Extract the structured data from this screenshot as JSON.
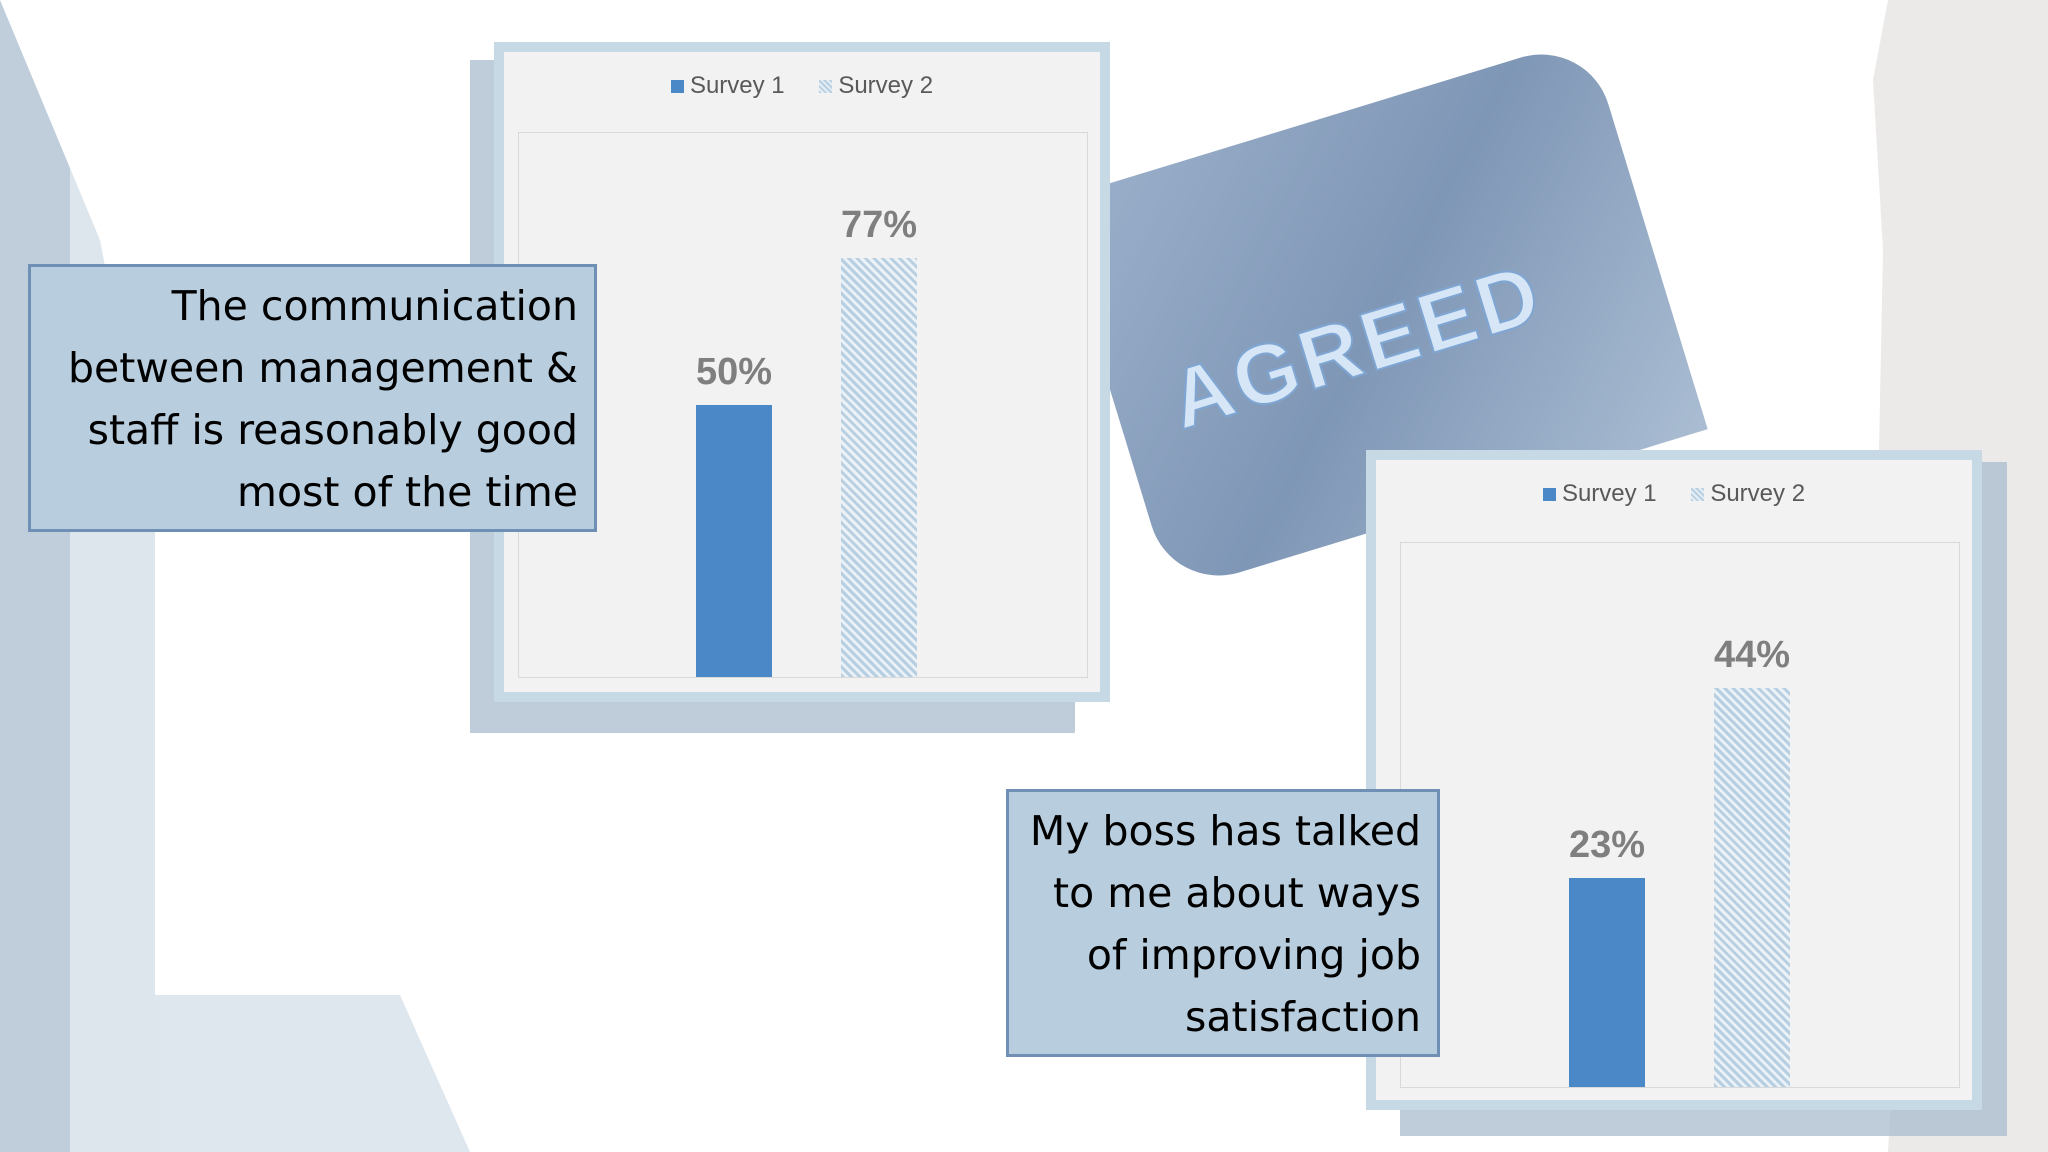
{
  "stamp_text": "AGREED",
  "colors": {
    "survey1": "#4a88c8",
    "survey2": "#c9dbe8",
    "label": "#7f7f7f",
    "question_box": "#b8cddd"
  },
  "chart_data": [
    {
      "type": "bar",
      "question": "The communication between management & staff is reasonably good most of the time",
      "legend_position": "top",
      "series": [
        {
          "name": "Survey 1",
          "values": [
            50
          ],
          "label": "50%"
        },
        {
          "name": "Survey 2",
          "values": [
            77
          ],
          "label": "77%"
        }
      ],
      "ylim": [
        0,
        100
      ],
      "grid": false
    },
    {
      "type": "bar",
      "question": "My boss has talked to me about ways of improving job satisfaction",
      "legend_position": "top",
      "series": [
        {
          "name": "Survey 1",
          "values": [
            23
          ],
          "label": "23%"
        },
        {
          "name": "Survey 2",
          "values": [
            44
          ],
          "label": "44%"
        }
      ],
      "ylim": [
        0,
        60
      ],
      "grid": false
    }
  ]
}
